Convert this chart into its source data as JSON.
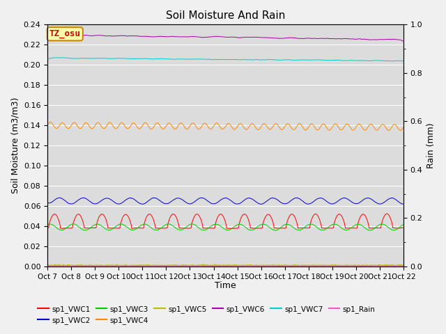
{
  "title": "Soil Moisture And Rain",
  "xlabel": "Time",
  "ylabel_left": "Soil Moisture (m3/m3)",
  "ylabel_right": "Rain (mm)",
  "ylim_left": [
    0,
    0.24
  ],
  "ylim_right": [
    0.0,
    1.0
  ],
  "plot_bg": "#dcdcdc",
  "fig_bg": "#f0f0f0",
  "annotation_text": "TZ_osu",
  "annotation_bg": "#ffffaa",
  "annotation_border": "#cc8800",
  "annotation_text_color": "#cc0000",
  "x_tick_labels": [
    "Oct 7",
    "Oct 8",
    "Oct 9",
    "Oct 10",
    "Oct 11",
    "Oct 12",
    "Oct 13",
    "Oct 14",
    "Oct 15",
    "Oct 16",
    "Oct 17",
    "Oct 18",
    "Oct 19",
    "Oct 20",
    "Oct 21",
    "Oct 22"
  ],
  "n_points": 2000,
  "days": 15
}
